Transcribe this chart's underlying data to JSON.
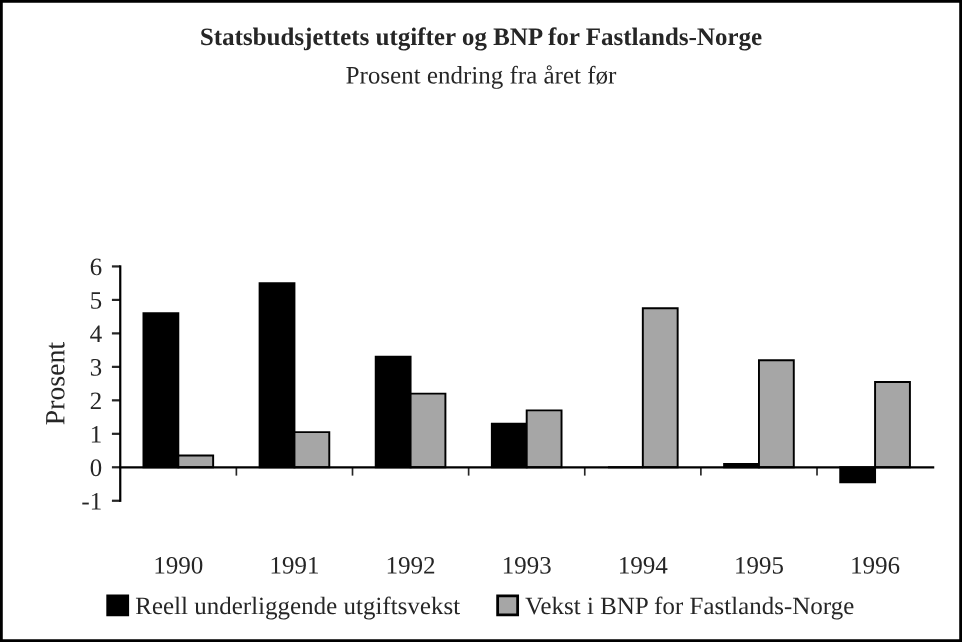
{
  "chart_data": {
    "type": "bar",
    "title": "Statsbudsjettets utgifter og BNP for Fastlands-Norge",
    "subtitle": "Prosent endring fra året før",
    "ylabel": "Prosent",
    "categories": [
      "1990",
      "1991",
      "1992",
      "1993",
      "1994",
      "1995",
      "1996"
    ],
    "series": [
      {
        "name": "Reell underliggende utgiftsvekst",
        "color": "#000000",
        "values": [
          4.6,
          5.5,
          3.3,
          1.3,
          0,
          0.1,
          -0.45
        ]
      },
      {
        "name": "Vekst i BNP for Fastlands-Norge",
        "color": "#a6a6a6",
        "values": [
          0.35,
          1.05,
          2.2,
          1.7,
          4.75,
          3.2,
          2.55
        ]
      }
    ],
    "ylim": [
      -1,
      6
    ],
    "yticks": [
      -1,
      0,
      1,
      2,
      3,
      4,
      5,
      6
    ],
    "legend": "bottom"
  }
}
